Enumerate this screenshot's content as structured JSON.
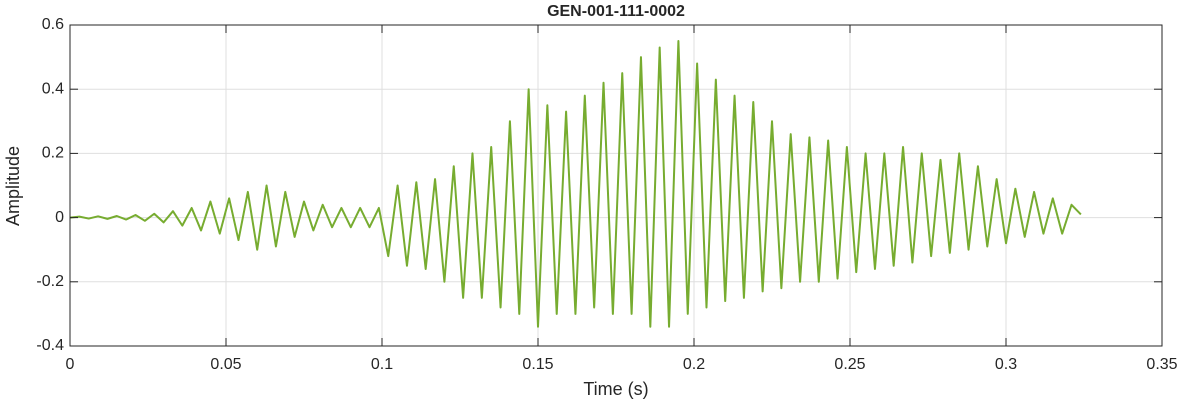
{
  "chart_data": {
    "type": "line",
    "title": "GEN-001-111-0002",
    "xlabel": "Time (s)",
    "ylabel": "Amplitude",
    "xlim": [
      0,
      0.35
    ],
    "ylim": [
      -0.4,
      0.6
    ],
    "xticks": [
      0,
      0.05,
      0.1,
      0.15,
      0.2,
      0.25,
      0.3,
      0.35
    ],
    "yticks": [
      -0.4,
      -0.2,
      0,
      0.2,
      0.4,
      0.6
    ],
    "grid": true,
    "x": [
      0,
      0.003,
      0.006,
      0.009,
      0.012,
      0.015,
      0.018,
      0.021,
      0.024,
      0.027,
      0.03,
      0.033,
      0.036,
      0.039,
      0.042,
      0.045,
      0.048,
      0.051,
      0.054,
      0.057,
      0.06,
      0.063,
      0.066,
      0.069,
      0.072,
      0.075,
      0.078,
      0.081,
      0.084,
      0.087,
      0.09,
      0.093,
      0.096,
      0.099,
      0.102,
      0.105,
      0.108,
      0.111,
      0.114,
      0.117,
      0.12,
      0.123,
      0.126,
      0.129,
      0.132,
      0.135,
      0.138,
      0.141,
      0.144,
      0.147,
      0.15,
      0.153,
      0.156,
      0.159,
      0.162,
      0.165,
      0.168,
      0.171,
      0.174,
      0.177,
      0.18,
      0.183,
      0.186,
      0.189,
      0.192,
      0.195,
      0.198,
      0.201,
      0.204,
      0.207,
      0.21,
      0.213,
      0.216,
      0.219,
      0.222,
      0.225,
      0.228,
      0.231,
      0.234,
      0.237,
      0.24,
      0.243,
      0.246,
      0.249,
      0.252,
      0.255,
      0.258,
      0.261,
      0.264,
      0.267,
      0.27,
      0.273,
      0.276,
      0.279,
      0.282,
      0.285,
      0.288,
      0.291,
      0.294,
      0.297,
      0.3,
      0.303,
      0.306,
      0.309,
      0.312,
      0.315,
      0.318,
      0.321,
      0.324
    ],
    "series": [
      {
        "color": "#77ac30",
        "values": [
          0,
          0.003,
          -0.003,
          0.004,
          -0.004,
          0.005,
          -0.006,
          0.008,
          -0.01,
          0.012,
          -0.015,
          0.02,
          -0.025,
          0.03,
          -0.04,
          0.05,
          -0.05,
          0.06,
          -0.07,
          0.08,
          -0.1,
          0.1,
          -0.09,
          0.08,
          -0.06,
          0.05,
          -0.04,
          0.04,
          -0.03,
          0.03,
          -0.03,
          0.03,
          -0.03,
          0.03,
          -0.12,
          0.1,
          -0.15,
          0.11,
          -0.16,
          0.12,
          -0.2,
          0.16,
          -0.25,
          0.2,
          -0.25,
          0.22,
          -0.28,
          0.3,
          -0.3,
          0.4,
          -0.34,
          0.35,
          -0.3,
          0.33,
          -0.3,
          0.38,
          -0.28,
          0.42,
          -0.3,
          0.45,
          -0.3,
          0.5,
          -0.34,
          0.53,
          -0.34,
          0.55,
          -0.3,
          0.48,
          -0.28,
          0.43,
          -0.26,
          0.38,
          -0.25,
          0.36,
          -0.23,
          0.3,
          -0.22,
          0.26,
          -0.2,
          0.25,
          -0.2,
          0.24,
          -0.19,
          0.22,
          -0.17,
          0.2,
          -0.16,
          0.2,
          -0.15,
          0.22,
          -0.14,
          0.2,
          -0.12,
          0.18,
          -0.11,
          0.2,
          -0.1,
          0.16,
          -0.09,
          0.12,
          -0.08,
          0.09,
          -0.06,
          0.08,
          -0.05,
          0.06,
          -0.05,
          0.04,
          0.01
        ]
      }
    ]
  }
}
